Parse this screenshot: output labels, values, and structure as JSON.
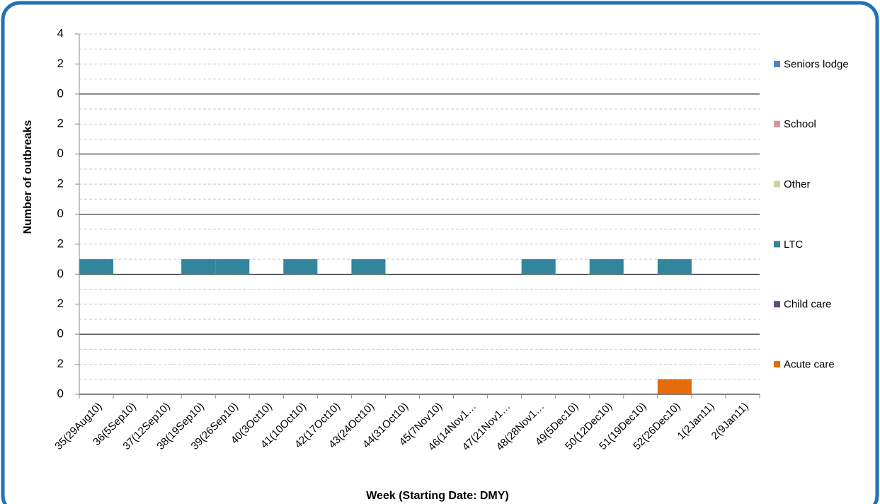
{
  "chart_data": {
    "type": "bar",
    "x_label": "Week (Starting Date: DMY)",
    "y_label": "Number of outbreaks",
    "categories": [
      "35(29Aug10)",
      "36(5Sep10)",
      "37(12Sep10)",
      "38(19Sep10)",
      "39(26Sep10)",
      "40(3Oct10)",
      "41(10Oct10)",
      "42(17Oct10)",
      "43(24Oct10)",
      "44(31Oct10)",
      "45(7Nov10)",
      "46(14Nov1…",
      "47(21Nov1…",
      "48(28Nov1…",
      "49(5Dec10)",
      "50(12Dec10)",
      "51(19Dec10)",
      "52(26Dec10)",
      "1(2Jan11)",
      "2(9Jan11)"
    ],
    "series": [
      {
        "name": "Seniors lodge",
        "color": "#4f81bd",
        "values": [
          0,
          0,
          0,
          0,
          0,
          0,
          0,
          0,
          0,
          0,
          0,
          0,
          0,
          0,
          0,
          0,
          0,
          0,
          0,
          0
        ]
      },
      {
        "name": "School",
        "color": "#d99694",
        "values": [
          0,
          0,
          0,
          0,
          0,
          0,
          0,
          0,
          0,
          0,
          0,
          0,
          0,
          0,
          0,
          0,
          0,
          0,
          0,
          0
        ]
      },
      {
        "name": "Other",
        "color": "#c3d69b",
        "values": [
          0,
          0,
          0,
          0,
          0,
          0,
          0,
          0,
          0,
          0,
          0,
          0,
          0,
          0,
          0,
          0,
          0,
          0,
          0,
          0
        ]
      },
      {
        "name": "LTC",
        "color": "#31859c",
        "values": [
          1,
          0,
          0,
          1,
          1,
          0,
          1,
          0,
          1,
          0,
          0,
          0,
          0,
          1,
          0,
          1,
          0,
          1,
          0,
          0
        ]
      },
      {
        "name": "Child care",
        "color": "#604a7b",
        "values": [
          0,
          0,
          0,
          0,
          0,
          0,
          0,
          0,
          0,
          0,
          0,
          0,
          0,
          0,
          0,
          0,
          0,
          0,
          0,
          0
        ]
      },
      {
        "name": "Acute care",
        "color": "#e46c0a",
        "values": [
          0,
          0,
          0,
          0,
          0,
          0,
          0,
          0,
          0,
          0,
          0,
          0,
          0,
          0,
          0,
          0,
          0,
          1,
          0,
          0
        ]
      }
    ],
    "ylim": [
      0,
      4
    ],
    "yticks": [
      0,
      2,
      4
    ],
    "minor_grid": [
      1,
      3
    ],
    "grid": true,
    "legend": "right"
  }
}
